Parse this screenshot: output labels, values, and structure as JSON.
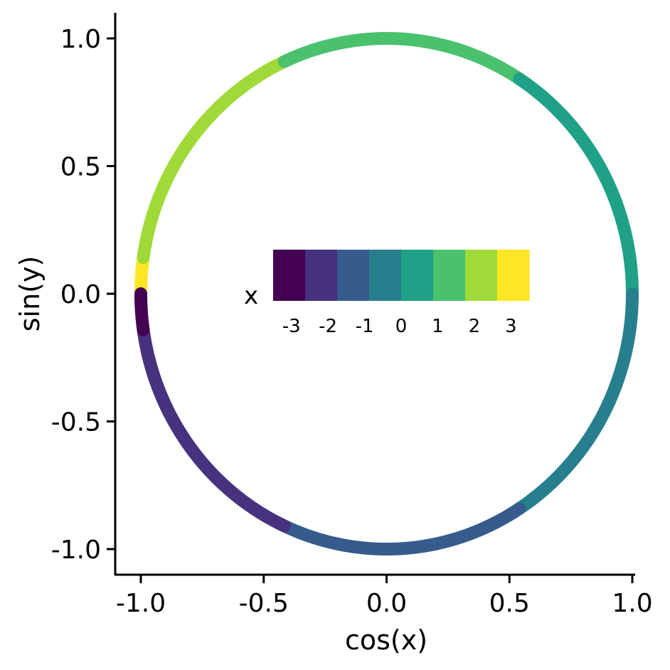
{
  "chart_data": {
    "type": "line",
    "xlabel": "cos(x)",
    "ylabel": "sin(y)",
    "xlim": [
      -1.0,
      1.0
    ],
    "ylim": [
      -1.0,
      1.0
    ],
    "x_ticks": [
      "-1.0",
      "-0.5",
      "0.0",
      "0.5",
      "1.0"
    ],
    "y_ticks": [
      "1.0",
      "0.5",
      "0.0",
      "-0.5",
      "-1.0"
    ],
    "x_tick_values": [
      -1.0,
      -0.5,
      0.0,
      0.5,
      1.0
    ],
    "y_tick_values": [
      1.0,
      0.5,
      0.0,
      -0.5,
      -1.0
    ],
    "grid": false,
    "legend": {
      "title": "x",
      "placement": "center",
      "ticks": [
        "-3",
        "-2",
        "-1",
        "0",
        "1",
        "2",
        "3"
      ],
      "tick_values": [
        -3,
        -2,
        -1,
        0,
        1,
        2,
        3
      ],
      "range": [
        -3.5,
        3.5
      ],
      "colors": [
        "#440154",
        "#46327e",
        "#365c8d",
        "#277f8e",
        "#1fa187",
        "#4ac16d",
        "#a0da39",
        "#fde725"
      ]
    },
    "series": [
      {
        "x_start": -3.5,
        "x_end": -3.0,
        "color": "#fde725"
      },
      {
        "x_start": -3.0,
        "x_end": -2.0,
        "color": "#a0da39"
      },
      {
        "x_start": -2.0,
        "x_end": -1.0,
        "color": "#4ac16d"
      },
      {
        "x_start": -1.0,
        "x_end": 0.0,
        "color": "#1fa187"
      },
      {
        "x_start": 0.0,
        "x_end": 1.0,
        "color": "#277f8e"
      },
      {
        "x_start": 1.0,
        "x_end": 2.0,
        "color": "#365c8d"
      },
      {
        "x_start": 2.0,
        "x_end": 3.0,
        "color": "#46327e"
      },
      {
        "x_start": 3.0,
        "x_end": 3.1416,
        "color": "#440154"
      }
    ]
  }
}
